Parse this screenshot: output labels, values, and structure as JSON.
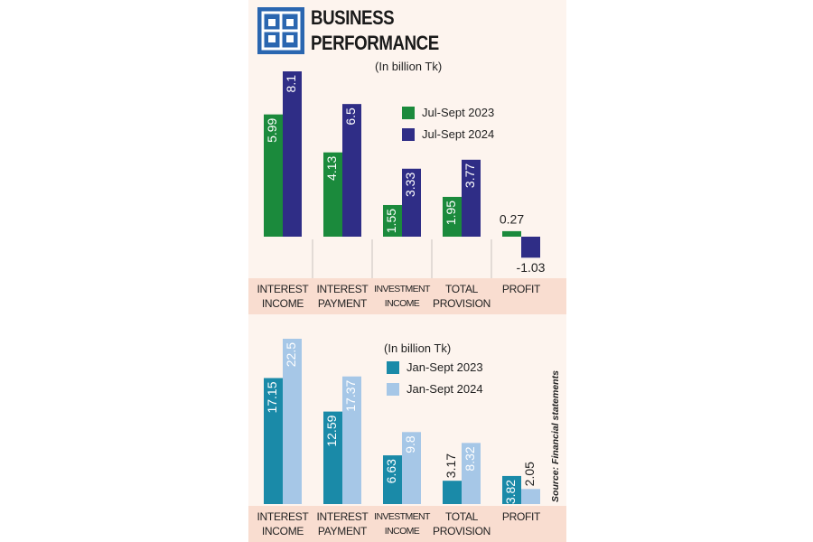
{
  "chart_data": [
    {
      "type": "bar",
      "title": "BUSINESS PERFORMANCE",
      "subtitle": "(In billion Tk)",
      "categories": [
        "INTEREST INCOME",
        "INTEREST PAYMENT",
        "INVESTMENT INCOME",
        "TOTAL PROVISION",
        "PROFIT"
      ],
      "series": [
        {
          "name": "Jul-Sept 2023",
          "color": "#1b8a3c",
          "values": [
            5.99,
            4.13,
            1.55,
            1.95,
            0.27
          ]
        },
        {
          "name": "Jul-Sept 2024",
          "color": "#2f2d86",
          "values": [
            8.1,
            6.5,
            3.33,
            3.77,
            -1.03
          ]
        }
      ]
    },
    {
      "type": "bar",
      "subtitle": "(In billion Tk)",
      "categories": [
        "INTEREST INCOME",
        "INTEREST PAYMENT",
        "INVESTMENT INCOME",
        "TOTAL PROVISION",
        "PROFIT"
      ],
      "series": [
        {
          "name": "Jan-Sept 2023",
          "color": "#1a8aa8",
          "values": [
            17.15,
            12.59,
            6.63,
            3.17,
            3.82
          ]
        },
        {
          "name": "Jan-Sept 2024",
          "color": "#a6c7e7",
          "values": [
            22.5,
            17.37,
            9.8,
            8.32,
            2.05
          ]
        }
      ]
    }
  ],
  "source": "Source: Financial statements"
}
